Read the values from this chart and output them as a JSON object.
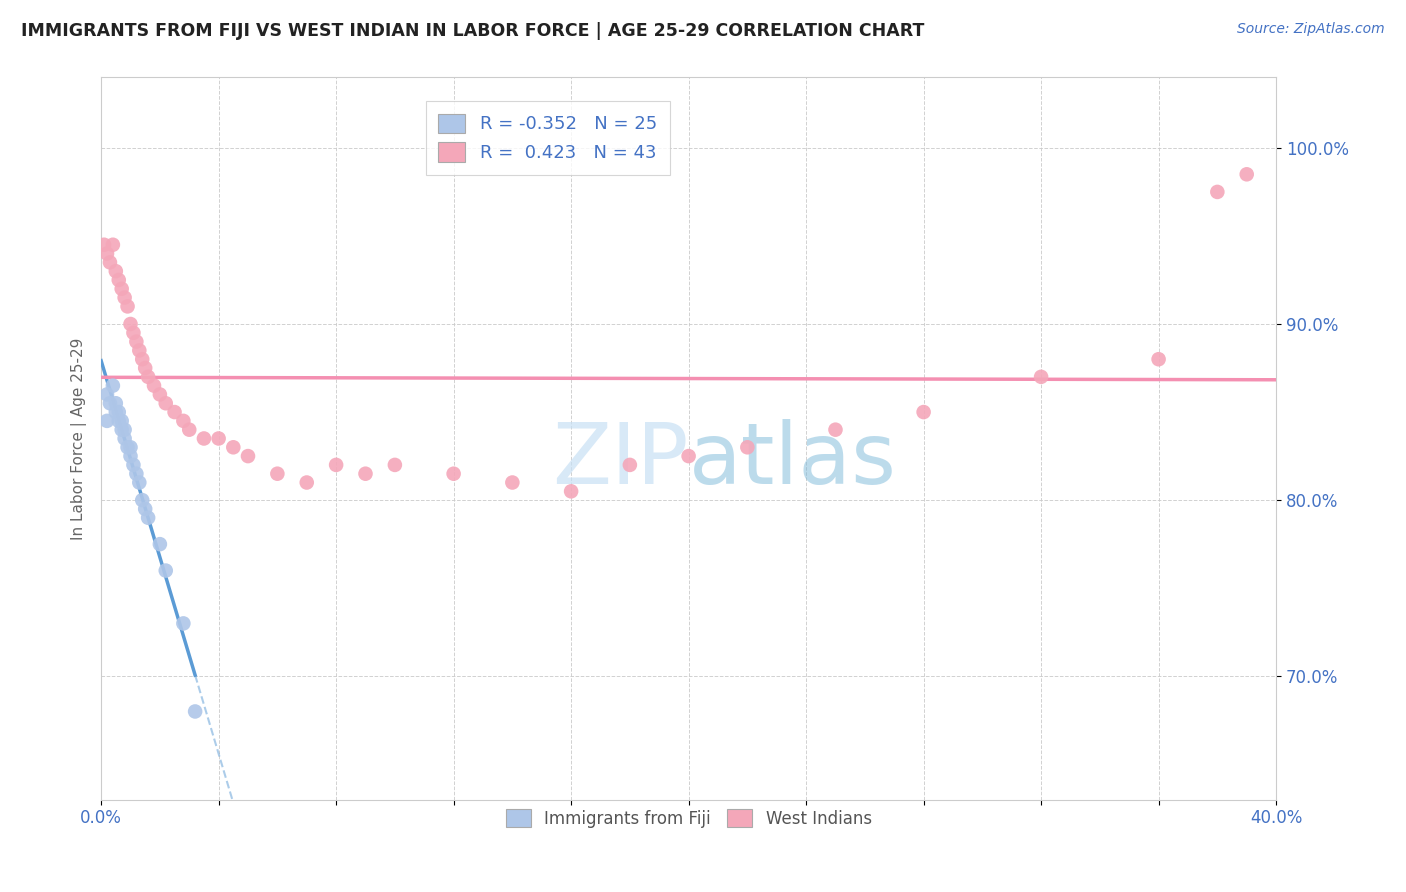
{
  "title": "IMMIGRANTS FROM FIJI VS WEST INDIAN IN LABOR FORCE | AGE 25-29 CORRELATION CHART",
  "source": "Source: ZipAtlas.com",
  "ylabel": "In Labor Force | Age 25-29",
  "xlim": [
    0.0,
    0.4
  ],
  "ylim": [
    0.63,
    1.04
  ],
  "ytick_positions": [
    0.7,
    0.8,
    0.9,
    1.0
  ],
  "ytick_labels": [
    "70.0%",
    "80.0%",
    "90.0%",
    "100.0%"
  ],
  "xtick_positions": [
    0.0,
    0.04,
    0.08,
    0.12,
    0.16,
    0.2,
    0.24,
    0.28,
    0.32,
    0.36,
    0.4
  ],
  "xtick_labels": [
    "0.0%",
    "",
    "",
    "",
    "",
    "",
    "",
    "",
    "",
    "",
    "40.0%"
  ],
  "fiji_color": "#aec6e8",
  "west_indian_color": "#f4a7b9",
  "fiji_R": -0.352,
  "fiji_N": 25,
  "west_indian_R": 0.423,
  "west_indian_N": 43,
  "fiji_line_color": "#5b9bd5",
  "west_indian_line_color": "#f48fb1",
  "fiji_scatter_x": [
    0.002,
    0.002,
    0.003,
    0.004,
    0.005,
    0.005,
    0.006,
    0.006,
    0.007,
    0.007,
    0.008,
    0.008,
    0.009,
    0.01,
    0.01,
    0.011,
    0.012,
    0.013,
    0.014,
    0.015,
    0.016,
    0.02,
    0.022,
    0.028,
    0.032
  ],
  "fiji_scatter_y": [
    0.845,
    0.86,
    0.855,
    0.865,
    0.85,
    0.855,
    0.845,
    0.85,
    0.84,
    0.845,
    0.835,
    0.84,
    0.83,
    0.825,
    0.83,
    0.82,
    0.815,
    0.81,
    0.8,
    0.795,
    0.79,
    0.775,
    0.76,
    0.73,
    0.68
  ],
  "west_indian_scatter_x": [
    0.001,
    0.002,
    0.003,
    0.004,
    0.005,
    0.006,
    0.007,
    0.008,
    0.009,
    0.01,
    0.011,
    0.012,
    0.013,
    0.014,
    0.015,
    0.016,
    0.018,
    0.02,
    0.022,
    0.025,
    0.028,
    0.03,
    0.035,
    0.04,
    0.045,
    0.05,
    0.06,
    0.07,
    0.08,
    0.09,
    0.1,
    0.12,
    0.14,
    0.16,
    0.18,
    0.2,
    0.22,
    0.25,
    0.28,
    0.32,
    0.36,
    0.38,
    0.39
  ],
  "west_indian_scatter_y": [
    0.945,
    0.94,
    0.935,
    0.945,
    0.93,
    0.925,
    0.92,
    0.915,
    0.91,
    0.9,
    0.895,
    0.89,
    0.885,
    0.88,
    0.875,
    0.87,
    0.865,
    0.86,
    0.855,
    0.85,
    0.845,
    0.84,
    0.835,
    0.835,
    0.83,
    0.825,
    0.815,
    0.81,
    0.82,
    0.815,
    0.82,
    0.815,
    0.81,
    0.805,
    0.82,
    0.825,
    0.83,
    0.84,
    0.85,
    0.87,
    0.88,
    0.975,
    0.985
  ],
  "watermark_zip": "ZIP",
  "watermark_atlas": "atlas",
  "background_color": "#ffffff",
  "grid_color": "#cccccc",
  "tick_color": "#4472c4"
}
